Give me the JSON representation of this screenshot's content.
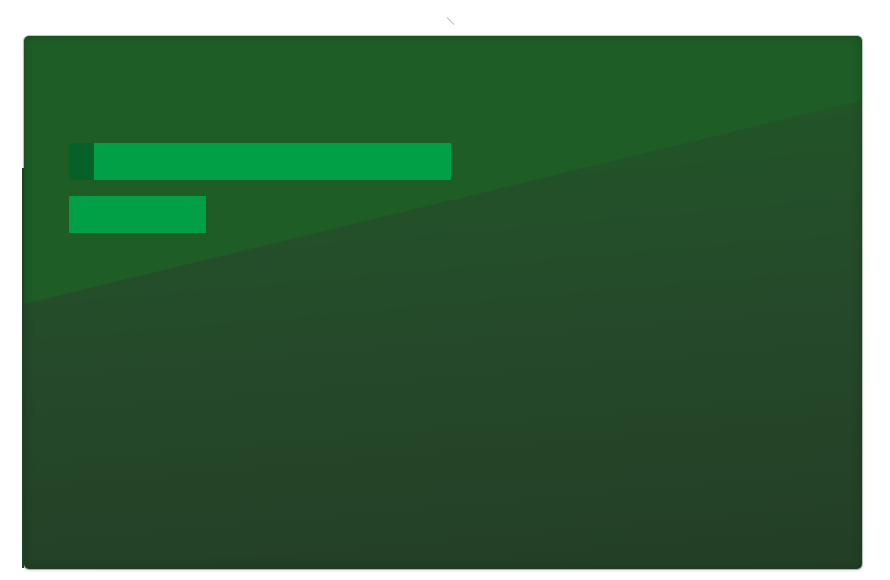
{
  "colors": {
    "panel_top": "#1f5c26",
    "panel_bottom": "#233f26",
    "bar_green": "#02a046",
    "progress_fill": "#066128"
  },
  "loading": {
    "primary_progress": 0.065
  }
}
